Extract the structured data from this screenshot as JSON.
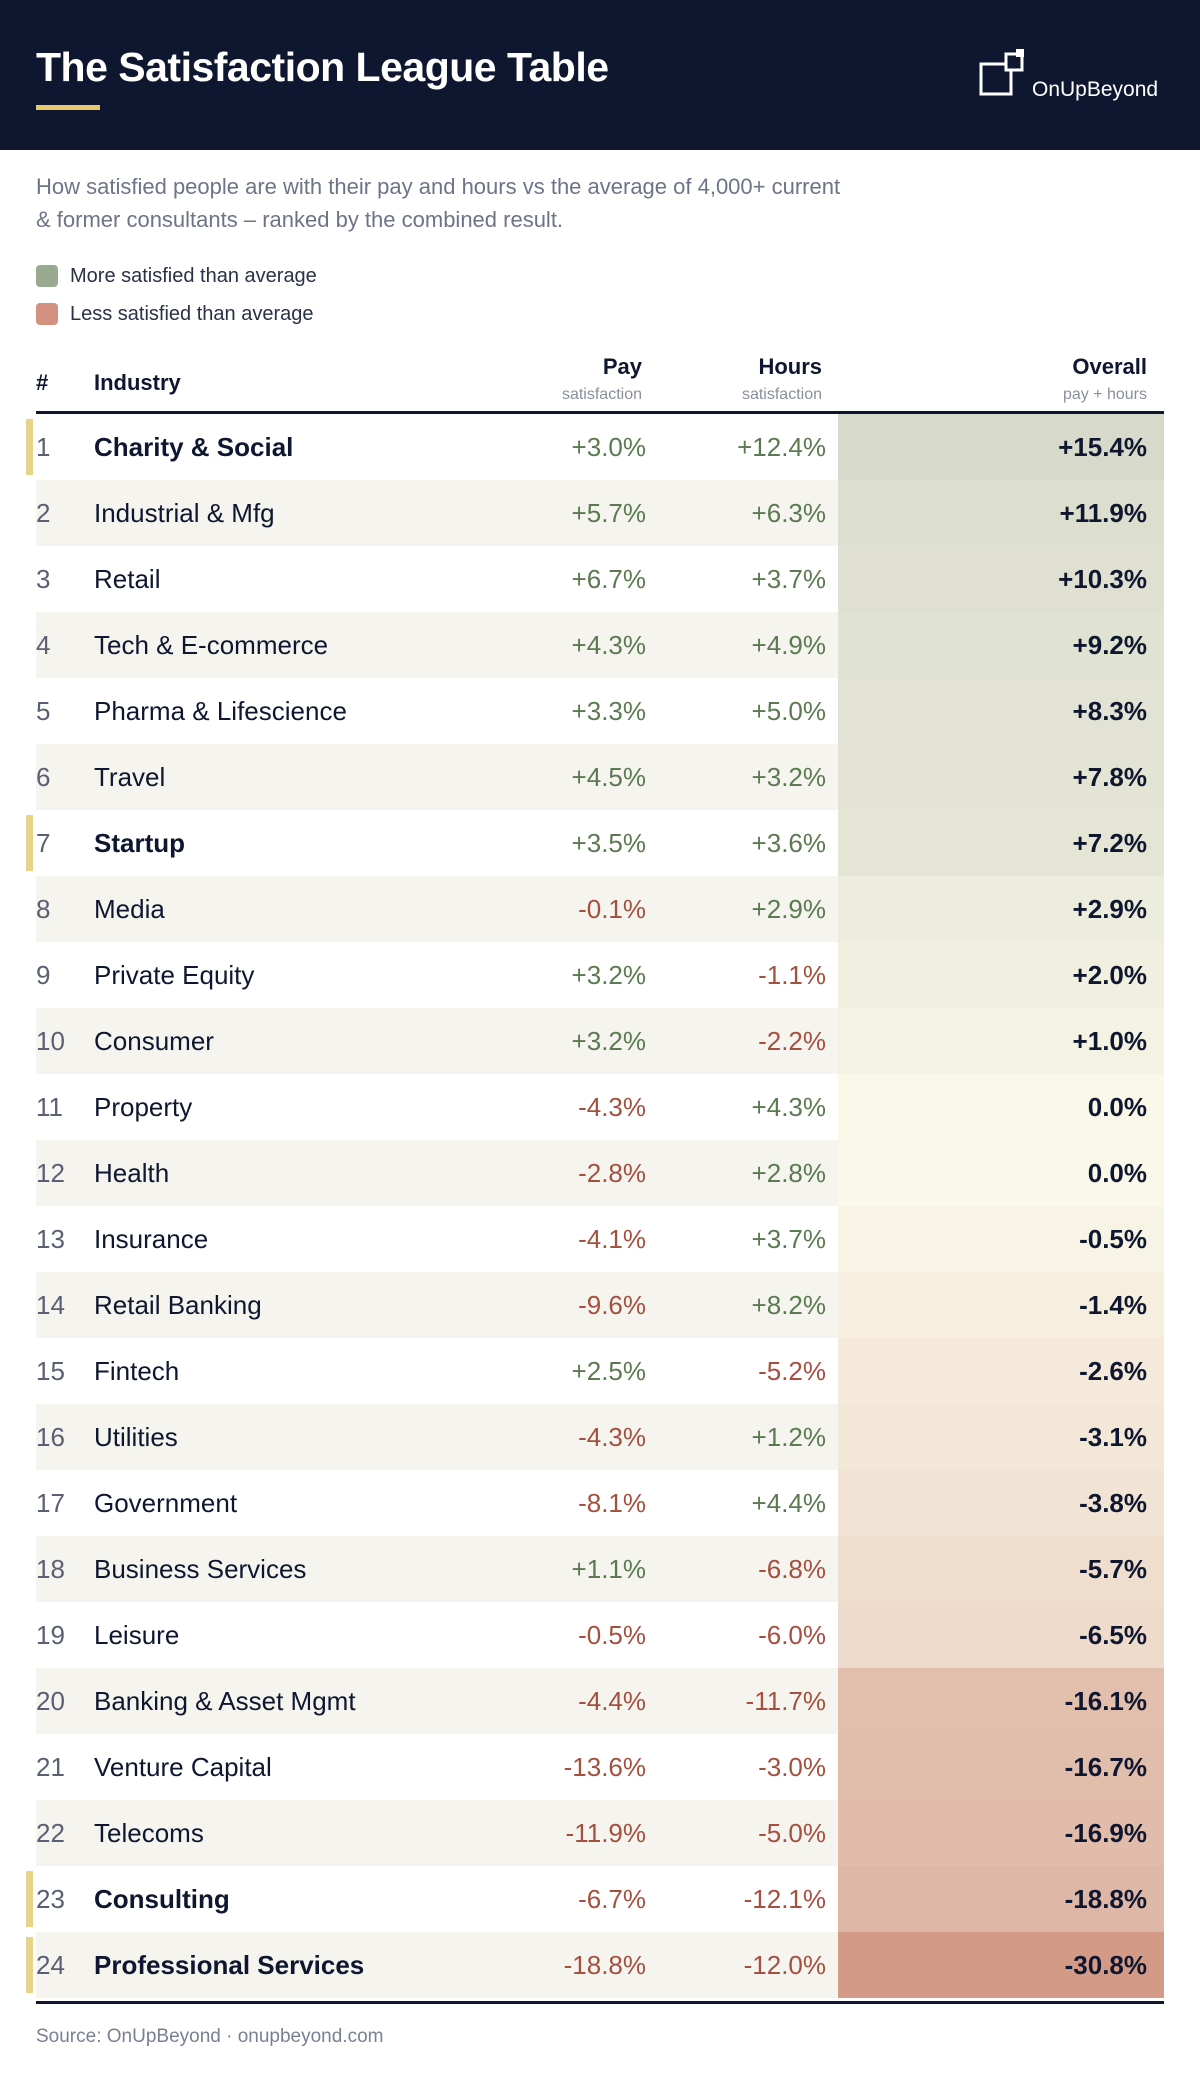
{
  "title": "The Satisfaction League Table",
  "brand": {
    "name": "OnUpBeyond",
    "icon": "brand-squares-icon"
  },
  "subtitle": "How satisfied people are with their pay and hours vs the average of 4,000+ current & former consultants – ranked by the combined result.",
  "legend": [
    {
      "label": "More satisfied than average",
      "color": "#9aaa90"
    },
    {
      "label": "Less satisfied than average",
      "color": "#d49181"
    }
  ],
  "columns": {
    "rank": "#",
    "industry": "Industry",
    "pay": "Pay",
    "pay_sub": "satisfaction",
    "hours": "Hours",
    "hours_sub": "satisfaction",
    "overall": "Overall",
    "overall_sub": "pay + hours"
  },
  "colors": {
    "positive_text": "#5c7a52",
    "negative_text": "#a5503f",
    "highlight_flag": "#e7d38a",
    "navy": "#0f1730"
  },
  "chart_data": {
    "type": "table",
    "rows": [
      {
        "rank": "1",
        "industry": "Charity & Social",
        "pay": "+3.0%",
        "hours": "+12.4%",
        "overall": "+15.4%",
        "overall_value": 15.4,
        "highlight": true
      },
      {
        "rank": "2",
        "industry": "Industrial & Mfg",
        "pay": "+5.7%",
        "hours": "+6.3%",
        "overall": "+11.9%",
        "overall_value": 11.9,
        "highlight": false
      },
      {
        "rank": "3",
        "industry": "Retail",
        "pay": "+6.7%",
        "hours": "+3.7%",
        "overall": "+10.3%",
        "overall_value": 10.3,
        "highlight": false
      },
      {
        "rank": "4",
        "industry": "Tech & E-commerce",
        "pay": "+4.3%",
        "hours": "+4.9%",
        "overall": "+9.2%",
        "overall_value": 9.2,
        "highlight": false
      },
      {
        "rank": "5",
        "industry": "Pharma & Lifescience",
        "pay": "+3.3%",
        "hours": "+5.0%",
        "overall": "+8.3%",
        "overall_value": 8.3,
        "highlight": false
      },
      {
        "rank": "6",
        "industry": "Travel",
        "pay": "+4.5%",
        "hours": "+3.2%",
        "overall": "+7.8%",
        "overall_value": 7.8,
        "highlight": false
      },
      {
        "rank": "7",
        "industry": "Startup",
        "pay": "+3.5%",
        "hours": "+3.6%",
        "overall": "+7.2%",
        "overall_value": 7.2,
        "highlight": true
      },
      {
        "rank": "8",
        "industry": "Media",
        "pay": "-0.1%",
        "hours": "+2.9%",
        "overall": "+2.9%",
        "overall_value": 2.9,
        "highlight": false
      },
      {
        "rank": "9",
        "industry": "Private Equity",
        "pay": "+3.2%",
        "hours": "-1.1%",
        "overall": "+2.0%",
        "overall_value": 2.0,
        "highlight": false
      },
      {
        "rank": "10",
        "industry": "Consumer",
        "pay": "+3.2%",
        "hours": "-2.2%",
        "overall": "+1.0%",
        "overall_value": 1.0,
        "highlight": false
      },
      {
        "rank": "11",
        "industry": "Property",
        "pay": "-4.3%",
        "hours": "+4.3%",
        "overall": "0.0%",
        "overall_value": 0.0,
        "highlight": false
      },
      {
        "rank": "12",
        "industry": "Health",
        "pay": "-2.8%",
        "hours": "+2.8%",
        "overall": "0.0%",
        "overall_value": 0.0,
        "highlight": false
      },
      {
        "rank": "13",
        "industry": "Insurance",
        "pay": "-4.1%",
        "hours": "+3.7%",
        "overall": "-0.5%",
        "overall_value": -0.5,
        "highlight": false
      },
      {
        "rank": "14",
        "industry": "Retail Banking",
        "pay": "-9.6%",
        "hours": "+8.2%",
        "overall": "-1.4%",
        "overall_value": -1.4,
        "highlight": false
      },
      {
        "rank": "15",
        "industry": "Fintech",
        "pay": "+2.5%",
        "hours": "-5.2%",
        "overall": "-2.6%",
        "overall_value": -2.6,
        "highlight": false
      },
      {
        "rank": "16",
        "industry": "Utilities",
        "pay": "-4.3%",
        "hours": "+1.2%",
        "overall": "-3.1%",
        "overall_value": -3.1,
        "highlight": false
      },
      {
        "rank": "17",
        "industry": "Government",
        "pay": "-8.1%",
        "hours": "+4.4%",
        "overall": "-3.8%",
        "overall_value": -3.8,
        "highlight": false
      },
      {
        "rank": "18",
        "industry": "Business Services",
        "pay": "+1.1%",
        "hours": "-6.8%",
        "overall": "-5.7%",
        "overall_value": -5.7,
        "highlight": false
      },
      {
        "rank": "19",
        "industry": "Leisure",
        "pay": "-0.5%",
        "hours": "-6.0%",
        "overall": "-6.5%",
        "overall_value": -6.5,
        "highlight": false
      },
      {
        "rank": "20",
        "industry": "Banking & Asset Mgmt",
        "pay": "-4.4%",
        "hours": "-11.7%",
        "overall": "-16.1%",
        "overall_value": -16.1,
        "highlight": false
      },
      {
        "rank": "21",
        "industry": "Venture Capital",
        "pay": "-13.6%",
        "hours": "-3.0%",
        "overall": "-16.7%",
        "overall_value": -16.7,
        "highlight": false
      },
      {
        "rank": "22",
        "industry": "Telecoms",
        "pay": "-11.9%",
        "hours": "-5.0%",
        "overall": "-16.9%",
        "overall_value": -16.9,
        "highlight": false
      },
      {
        "rank": "23",
        "industry": "Consulting",
        "pay": "-6.7%",
        "hours": "-12.1%",
        "overall": "-18.8%",
        "overall_value": -18.8,
        "highlight": true
      },
      {
        "rank": "24",
        "industry": "Professional Services",
        "pay": "-18.8%",
        "hours": "-12.0%",
        "overall": "-30.8%",
        "overall_value": -30.8,
        "highlight": true
      }
    ]
  },
  "source": "Source: OnUpBeyond · onupbeyond.com"
}
